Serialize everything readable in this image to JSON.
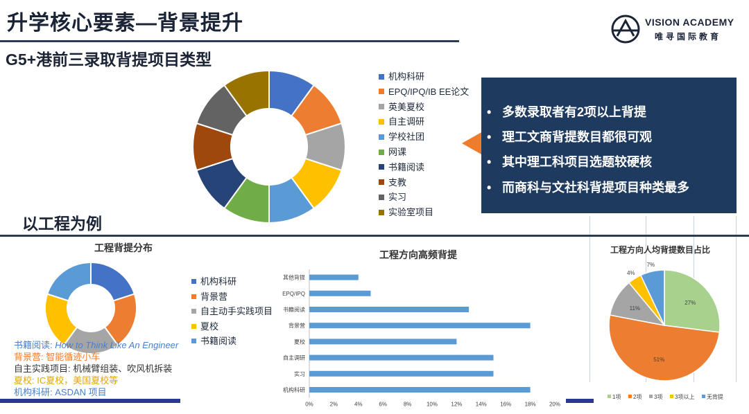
{
  "header": {
    "title": "升学核心要素—背景提升",
    "logo_en": "VISION ACADEMY",
    "logo_cn": "唯寻国际教育"
  },
  "section1": {
    "subtitle": "G5+港前三录取背提项目类型"
  },
  "donut1": {
    "legend": [
      {
        "label": "机构科研",
        "color": "#4472c4"
      },
      {
        "label": "EPQ/IPQ/IB EE论文",
        "color": "#ed7d31"
      },
      {
        "label": "英美夏校",
        "color": "#a5a5a5"
      },
      {
        "label": "自主调研",
        "color": "#ffc000"
      },
      {
        "label": "学校社团",
        "color": "#5b9bd5"
      },
      {
        "label": "网课",
        "color": "#70ad47"
      },
      {
        "label": "书籍阅读",
        "color": "#264478"
      },
      {
        "label": "支教",
        "color": "#9e480e"
      },
      {
        "label": "实习",
        "color": "#636363"
      },
      {
        "label": "实验室项目",
        "color": "#997300"
      }
    ]
  },
  "callout": {
    "bullet_char": "•",
    "bullets": [
      "多数录取者有2项以上背提",
      "理工文商背提数目都很可观",
      "其中理工科项目选题较硬核",
      "而商科与文社科背提项目种类最多"
    ]
  },
  "section2": {
    "heading": "以工程为例"
  },
  "donut2": {
    "title": "工程背提分布",
    "legend": [
      {
        "label": "机构科研",
        "color": "#4472c4"
      },
      {
        "label": "背景营",
        "color": "#ed7d31"
      },
      {
        "label": "自主动手实践项目",
        "color": "#a5a5a5"
      },
      {
        "label": "夏校",
        "color": "#ffc000"
      },
      {
        "label": "书籍阅读",
        "color": "#5b9bd5"
      }
    ]
  },
  "notes": [
    {
      "prefix": "书籍阅读: ",
      "content": "How to Think Like An Engineer",
      "color": "#4a7fc8"
    },
    {
      "prefix": "背景营: ",
      "content": "智能循迹小车",
      "color": "#ed7d31"
    },
    {
      "prefix": "自主实践项目: ",
      "content": "机械臂组装、吹风机拆装",
      "color": "#333333"
    },
    {
      "prefix": "夏校: ",
      "content": "IC夏校，美国夏校等",
      "color": "#e0a800"
    },
    {
      "prefix": "机构科研: ",
      "content": "ASDAN 项目",
      "color": "#4a7fc8"
    }
  ],
  "chart_data": [
    {
      "type": "pie",
      "title": "",
      "categories": [
        "机构科研",
        "EPQ/IPQ/IB EE论文",
        "英美夏校",
        "自主调研",
        "学校社团",
        "网课",
        "书籍阅读",
        "支教",
        "实习",
        "实验室项目"
      ],
      "values": [
        10,
        10,
        10,
        10,
        10,
        10,
        10,
        10,
        10,
        10
      ]
    },
    {
      "type": "pie",
      "title": "工程背提分布",
      "categories": [
        "机构科研",
        "背景营",
        "自主动手实践项目",
        "夏校",
        "书籍阅读"
      ],
      "values": [
        20,
        20,
        20,
        20,
        20
      ]
    },
    {
      "type": "bar",
      "title": "工程方向高频背提",
      "categories": [
        "其他背提",
        "EPQ/IPQ",
        "书籍阅读",
        "背景营",
        "夏校",
        "自主调研",
        "实习",
        "机构科研"
      ],
      "values": [
        4,
        5,
        13,
        18,
        12,
        15,
        15,
        18
      ],
      "xlim": [
        0,
        20
      ],
      "xticks": [
        "0%",
        "2%",
        "4%",
        "6%",
        "8%",
        "10%",
        "12%",
        "14%",
        "16%",
        "18%",
        "20%"
      ]
    },
    {
      "type": "pie",
      "title": "工程方向人均背提数目占比",
      "categories": [
        "1项",
        "2项",
        "3项",
        "3项以上",
        "无背提"
      ],
      "values": [
        27,
        51,
        11,
        4,
        7
      ],
      "labels": [
        "27%",
        "51%",
        "11%",
        "4%",
        "7%"
      ],
      "colors": [
        "#a9d18e",
        "#ed7d31",
        "#a5a5a5",
        "#ffc000",
        "#5b9bd5"
      ]
    }
  ]
}
